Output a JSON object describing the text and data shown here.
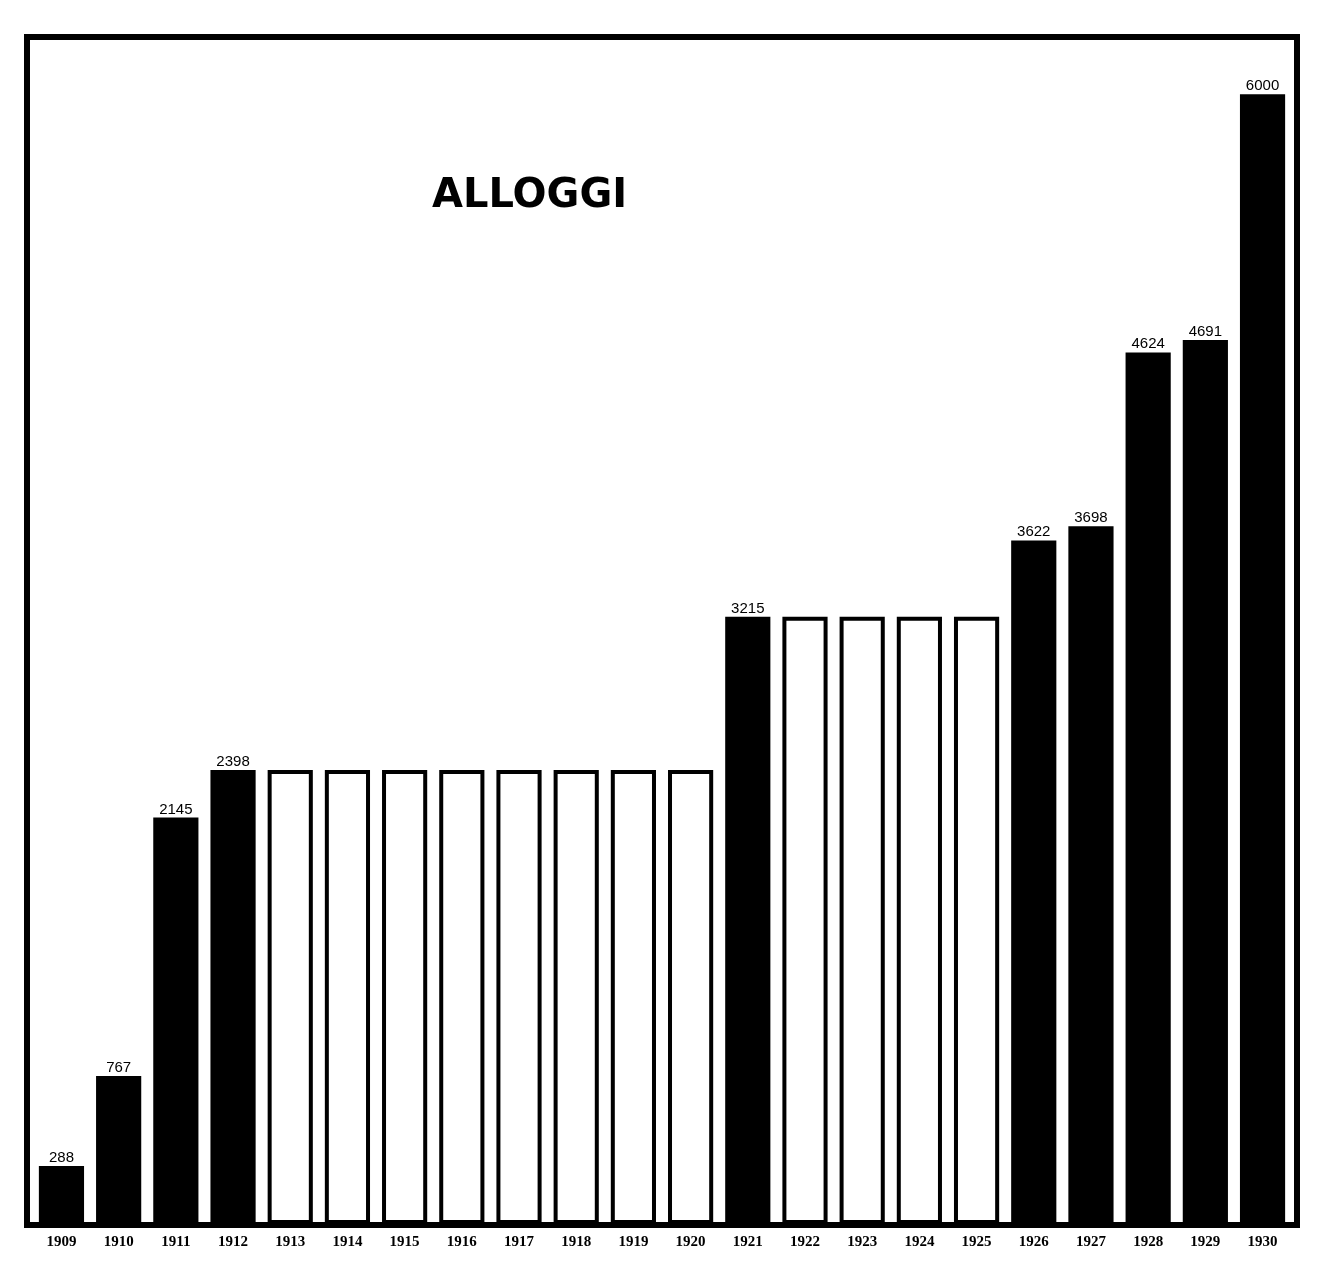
{
  "chart_data": {
    "type": "bar",
    "title": "ALLOGGI",
    "categories": [
      "1909",
      "1910",
      "1911",
      "1912",
      "1913",
      "1914",
      "1915",
      "1916",
      "1917",
      "1918",
      "1919",
      "1920",
      "1921",
      "1922",
      "1923",
      "1924",
      "1925",
      "1926",
      "1927",
      "1928",
      "1929",
      "1930"
    ],
    "values": [
      288,
      767,
      2145,
      2398,
      2398,
      2398,
      2398,
      2398,
      2398,
      2398,
      2398,
      2398,
      3215,
      3215,
      3215,
      3215,
      3215,
      3622,
      3698,
      4624,
      4691,
      6000
    ],
    "colors": [
      "#000000",
      "#000000",
      "#000000",
      "#000000",
      "#ffffff",
      "#ffffff",
      "#ffffff",
      "#ffffff",
      "#ffffff",
      "#ffffff",
      "#ffffff",
      "#ffffff",
      "#000000",
      "#ffffff",
      "#ffffff",
      "#ffffff",
      "#ffffff",
      "#000000",
      "#000000",
      "#000000",
      "#000000",
      "#000000"
    ],
    "value_labels": [
      "288",
      "767",
      "2145",
      "2398",
      null,
      null,
      null,
      null,
      null,
      null,
      null,
      null,
      "3215",
      null,
      null,
      null,
      null,
      "3622",
      "3698",
      "4624",
      "4691",
      "6000"
    ],
    "relative": false
  }
}
